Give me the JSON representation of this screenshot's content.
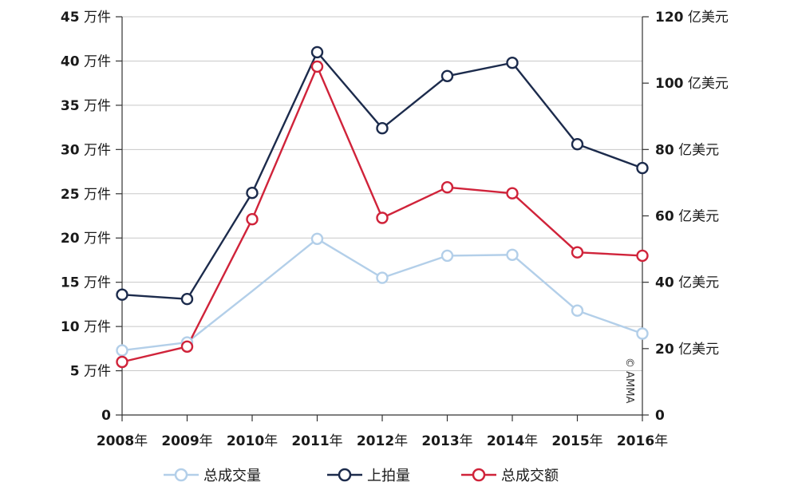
{
  "chart_data": {
    "type": "line",
    "categories": [
      "2008年",
      "2009年",
      "2010年",
      "2011年",
      "2012年",
      "2013年",
      "2014年",
      "2015年",
      "2016年"
    ],
    "y_left": {
      "min": 0,
      "max": 45,
      "ticks": [
        0,
        5,
        10,
        15,
        20,
        25,
        30,
        35,
        40,
        45
      ],
      "unit": "万件"
    },
    "y_right": {
      "min": 0,
      "max": 120,
      "ticks": [
        0,
        20,
        40,
        60,
        80,
        100,
        120
      ],
      "unit": "亿美元"
    },
    "grid": true,
    "legend_position": "bottom",
    "watermark": "© AMMA",
    "series": [
      {
        "name": "总成交量",
        "axis": "left",
        "color": "#b3cfe9",
        "values": [
          7.3,
          8.2,
          14.0,
          19.9,
          15.5,
          18.0,
          18.1,
          11.8,
          9.2
        ]
      },
      {
        "name": "上拍量",
        "axis": "left",
        "color": "#1c2b4c",
        "values": [
          13.6,
          13.1,
          25.1,
          41.0,
          32.4,
          38.3,
          39.8,
          30.6,
          27.9
        ]
      },
      {
        "name": "总成交额",
        "axis": "right",
        "color": "#d0233a",
        "values": [
          16,
          20.6,
          59,
          105,
          59.4,
          68.6,
          66.8,
          49,
          48
        ]
      }
    ],
    "hollow_markers": [
      [
        true,
        true,
        false,
        true,
        true,
        true,
        true,
        true,
        true
      ],
      [
        true,
        true,
        true,
        true,
        true,
        true,
        true,
        true,
        true
      ],
      [
        true,
        true,
        true,
        true,
        true,
        true,
        true,
        true,
        true
      ]
    ]
  }
}
